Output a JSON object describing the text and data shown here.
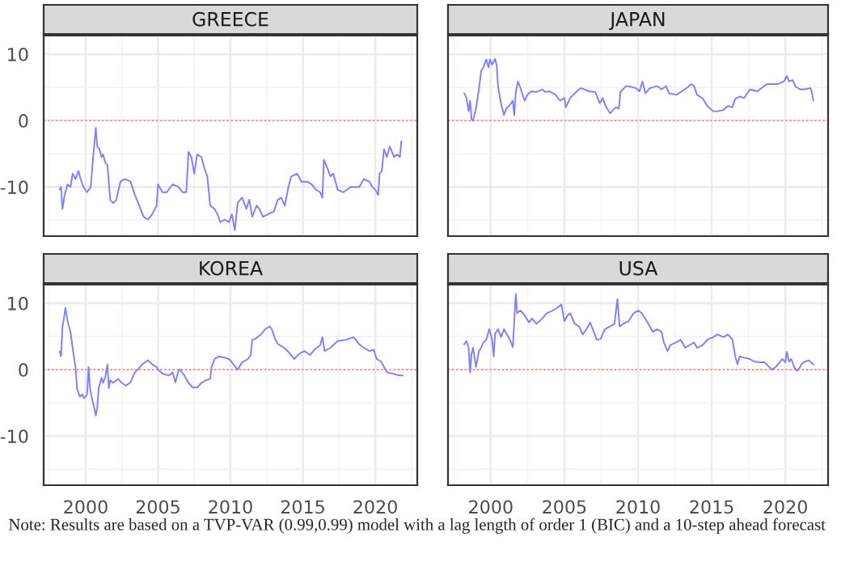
{
  "chart_data": [
    {
      "type": "line",
      "title": "GREECE",
      "xlim": [
        1997.1,
        2022.9
      ],
      "ylim": [
        -17.4,
        12.8
      ],
      "xticks": [
        2000,
        2005,
        2010,
        2015,
        2020
      ],
      "yticks": [
        -10,
        0,
        10
      ],
      "grid": true,
      "tick_labels": "y",
      "ref_lines": [
        {
          "axis": "y",
          "value": 0,
          "color": "#f08080",
          "line_style": "dotted"
        }
      ],
      "annotations": [
        "Note: Results are based on a TVP-VAR (0.99,0.99) model with a lag length of order 1 (BIC) and a 10-step ahead forecast"
      ],
      "x": [
        1998.2,
        1998.3,
        1998.4,
        1998.55,
        1998.75,
        1998.95,
        1999.1,
        1999.3,
        1999.5,
        1999.65,
        1999.85,
        2000.1,
        2000.35,
        2000.5,
        2000.7,
        2000.8,
        2000.95,
        2001.1,
        2001.2,
        2001.35,
        2001.5,
        2001.7,
        2001.9,
        2002.1,
        2002.4,
        2002.7,
        2003.1,
        2003.4,
        2003.7,
        2004.0,
        2004.3,
        2004.6,
        2004.9,
        2005.0,
        2005.3,
        2005.6,
        2006.0,
        2006.4,
        2006.7,
        2006.95,
        2007.1,
        2007.3,
        2007.5,
        2007.7,
        2008.0,
        2008.2,
        2008.4,
        2008.6,
        2008.9,
        2009.1,
        2009.3,
        2009.6,
        2009.9,
        2010.1,
        2010.3,
        2010.5,
        2010.8,
        2011.1,
        2011.3,
        2011.5,
        2011.8,
        2012.0,
        2012.25,
        2012.6,
        2013.0,
        2013.25,
        2013.5,
        2013.75,
        2014.0,
        2014.2,
        2014.6,
        2014.9,
        2015.3,
        2015.6,
        2015.9,
        2016.2,
        2016.35,
        2016.45,
        2016.7,
        2016.9,
        2017.1,
        2017.4,
        2017.8,
        2018.3,
        2018.9,
        2019.2,
        2019.6,
        2019.8,
        2020.0,
        2020.2,
        2020.3,
        2020.45,
        2020.6,
        2020.8,
        2021.0,
        2021.3,
        2021.5,
        2021.7,
        2021.8
      ],
      "series": [
        {
          "color": "#7f7fff",
          "values": [
            -10.4,
            -10,
            -13.3,
            -11.2,
            -9.6,
            -10,
            -8,
            -8.8,
            -7.6,
            -8.8,
            -10,
            -10.8,
            -10,
            -5.9,
            -1.1,
            -3.9,
            -4.3,
            -5.5,
            -5.1,
            -6.3,
            -6.7,
            -12,
            -12.4,
            -12,
            -9.2,
            -8.8,
            -9.2,
            -11.2,
            -12.8,
            -14.5,
            -14.9,
            -14.1,
            -12.8,
            -9.6,
            -10.8,
            -10.8,
            -9.6,
            -10,
            -10.8,
            -10.8,
            -4.7,
            -5.5,
            -8,
            -5.1,
            -5.5,
            -7.2,
            -8.4,
            -12.8,
            -13.3,
            -14.1,
            -15.3,
            -14.9,
            -15.3,
            -14.1,
            -16.5,
            -12.4,
            -11.6,
            -13.3,
            -11.9,
            -14.5,
            -12.8,
            -13.3,
            -14.5,
            -14.1,
            -13.7,
            -12,
            -11.6,
            -12.8,
            -10,
            -8.4,
            -8,
            -9.2,
            -9.2,
            -9.6,
            -10.4,
            -10.8,
            -11.6,
            -5.9,
            -7.2,
            -8.4,
            -8,
            -10.4,
            -10.8,
            -10,
            -10,
            -8.8,
            -9.2,
            -10,
            -10.4,
            -11.2,
            -8,
            -7.6,
            -4.3,
            -5.5,
            -3.9,
            -5.5,
            -5.1,
            -5.5,
            -3.1
          ]
        }
      ]
    },
    {
      "type": "line",
      "title": "JAPAN",
      "xlim": [
        1997.1,
        2022.9
      ],
      "ylim": [
        -17.4,
        12.8
      ],
      "xticks": [
        2000,
        2005,
        2010,
        2015,
        2020
      ],
      "yticks": [
        -10,
        0,
        10
      ],
      "grid": true,
      "tick_labels": false,
      "ref_lines": [
        {
          "axis": "y",
          "value": 0,
          "color": "#f08080",
          "line_style": "dotted"
        }
      ],
      "x": [
        1998.2,
        1998.35,
        1998.5,
        1998.6,
        1998.7,
        1998.8,
        1999.0,
        1999.2,
        1999.35,
        1999.5,
        1999.7,
        1999.85,
        1999.95,
        2000.1,
        2000.3,
        2000.4,
        2000.5,
        2000.7,
        2000.9,
        2001.05,
        2001.25,
        2001.5,
        2001.6,
        2001.7,
        2001.85,
        2002.05,
        2002.3,
        2002.5,
        2002.75,
        2003.1,
        2003.5,
        2003.7,
        2004.0,
        2004.4,
        2004.7,
        2005.0,
        2005.1,
        2005.4,
        2005.8,
        2006.1,
        2006.7,
        2007.1,
        2007.4,
        2007.6,
        2007.8,
        2008.1,
        2008.5,
        2008.7,
        2008.8,
        2009.2,
        2009.5,
        2009.85,
        2010.1,
        2010.3,
        2010.5,
        2010.8,
        2011.3,
        2011.6,
        2011.9,
        2012.1,
        2012.6,
        2012.9,
        2013.3,
        2013.6,
        2013.8,
        2014.0,
        2014.4,
        2014.7,
        2015.1,
        2015.4,
        2015.8,
        2016.1,
        2016.4,
        2016.6,
        2016.9,
        2017.2,
        2017.6,
        2018.1,
        2018.5,
        2018.75,
        2019.1,
        2019.5,
        2019.9,
        2020.1,
        2020.25,
        2020.5,
        2020.7,
        2021.0,
        2021.3,
        2021.7,
        2021.8,
        2021.9
      ],
      "series": [
        {
          "color": "#7f7fff",
          "values": [
            4.1,
            3.4,
            1.4,
            3,
            0.2,
            0,
            1.8,
            4.7,
            7.5,
            8,
            9.2,
            8,
            9.2,
            8.4,
            9.3,
            8.4,
            5.1,
            2.6,
            0.8,
            1.8,
            2.2,
            3,
            0.8,
            4.3,
            5.9,
            4.7,
            3,
            3.9,
            4.4,
            4.3,
            4.7,
            4.3,
            4.4,
            3.9,
            3,
            3.4,
            2,
            3.4,
            4.3,
            4.9,
            4.4,
            4.3,
            2.6,
            3.4,
            2.2,
            1.1,
            2,
            1.8,
            4.3,
            5.2,
            5.1,
            4.9,
            4.4,
            5.9,
            4.1,
            4.9,
            5.2,
            4.7,
            5.2,
            4.1,
            3.9,
            4.3,
            4.9,
            5.5,
            5.2,
            3.9,
            3.3,
            2.2,
            1.4,
            1.4,
            1.6,
            2.2,
            2,
            3.3,
            3.6,
            3.4,
            4.7,
            4.4,
            5.1,
            5.5,
            5.5,
            5.5,
            5.9,
            6.7,
            5.9,
            6.1,
            5.1,
            4.7,
            4.7,
            4.9,
            4.3,
            3
          ]
        }
      ]
    },
    {
      "type": "line",
      "title": "KOREA",
      "xlim": [
        1997.1,
        2022.9
      ],
      "ylim": [
        -17.4,
        12.8
      ],
      "xticks": [
        2000,
        2005,
        2010,
        2015,
        2020
      ],
      "yticks": [
        -10,
        0,
        10
      ],
      "grid": true,
      "ref_lines": [
        {
          "axis": "y",
          "value": 0,
          "color": "#f08080",
          "line_style": "dotted"
        }
      ],
      "x": [
        1998.2,
        1998.3,
        1998.4,
        1998.5,
        1998.6,
        1998.75,
        1998.95,
        1999.1,
        1999.3,
        1999.4,
        1999.6,
        1999.75,
        1999.9,
        2000.1,
        2000.2,
        2000.3,
        2000.45,
        2000.55,
        2000.7,
        2000.8,
        2000.9,
        2001.1,
        2001.2,
        2001.35,
        2001.5,
        2001.6,
        2001.7,
        2001.9,
        2002.25,
        2002.5,
        2002.8,
        2003.1,
        2003.4,
        2003.6,
        2003.9,
        2004.3,
        2004.6,
        2004.9,
        2005.0,
        2005.3,
        2005.6,
        2005.8,
        2006.0,
        2006.2,
        2006.4,
        2006.5,
        2006.8,
        2007.1,
        2007.4,
        2007.7,
        2008.0,
        2008.3,
        2008.6,
        2008.7,
        2008.9,
        2009.2,
        2009.6,
        2009.9,
        2010.1,
        2010.5,
        2010.8,
        2011.2,
        2011.4,
        2011.5,
        2011.7,
        2012.1,
        2012.4,
        2012.7,
        2012.85,
        2013.1,
        2013.3,
        2013.7,
        2014.0,
        2014.4,
        2014.75,
        2015.1,
        2015.5,
        2015.8,
        2016.2,
        2016.35,
        2016.5,
        2016.9,
        2017.4,
        2018.0,
        2018.5,
        2018.9,
        2019.2,
        2019.6,
        2019.9,
        2020.1,
        2020.4,
        2020.6,
        2020.8,
        2021.2,
        2021.5,
        2021.9
      ],
      "series": [
        {
          "color": "#7f7fff",
          "values": [
            2.8,
            2,
            6.5,
            7.7,
            9.3,
            7.3,
            5.7,
            3.3,
            0.4,
            -2.8,
            -4.1,
            -3.7,
            -4.3,
            -3.7,
            0.4,
            -2.8,
            -4.5,
            -5.3,
            -6.9,
            -5.7,
            -2.8,
            -1.2,
            -2,
            -1.2,
            0.8,
            -2.8,
            -1.6,
            -2,
            -1.4,
            -2,
            -2.4,
            -1.9,
            -0.4,
            0,
            0.8,
            1.4,
            0.8,
            0.4,
            0,
            -0.6,
            -0.8,
            -0.8,
            -0.4,
            -1.9,
            -0.2,
            0,
            -0.8,
            -2,
            -2.7,
            -2.7,
            -2,
            -1.6,
            -1.4,
            0.4,
            1.6,
            2,
            1.8,
            1.6,
            1.1,
            0,
            1.1,
            1.6,
            2.2,
            4.5,
            4.6,
            5.3,
            6.1,
            6.5,
            6.1,
            4.5,
            3.8,
            3.3,
            2.7,
            1.6,
            2.4,
            2.8,
            2.2,
            3,
            3.7,
            4.9,
            2.8,
            3.3,
            4.3,
            4.5,
            4.9,
            3.8,
            3.3,
            2.8,
            3,
            1.6,
            1.2,
            0.4,
            -0.4,
            -0.6,
            -0.8,
            -0.9
          ]
        }
      ]
    },
    {
      "type": "line",
      "title": "USA",
      "xlim": [
        1997.1,
        2022.9
      ],
      "ylim": [
        -17.4,
        12.8
      ],
      "xticks": [
        2000,
        2005,
        2010,
        2015,
        2020
      ],
      "yticks": [
        -10,
        0,
        10
      ],
      "grid": true,
      "tick_labels": "x",
      "ref_lines": [
        {
          "axis": "y",
          "value": 0,
          "color": "#f08080",
          "line_style": "dotted"
        }
      ],
      "x": [
        1998.2,
        1998.35,
        1998.5,
        1998.6,
        1998.7,
        1998.8,
        1999.0,
        1999.2,
        1999.35,
        1999.5,
        1999.7,
        1999.9,
        2000.1,
        2000.2,
        2000.3,
        2000.5,
        2000.7,
        2000.9,
        2001.1,
        2001.3,
        2001.5,
        2001.7,
        2001.8,
        2002.0,
        2002.2,
        2002.6,
        2002.8,
        2003.1,
        2003.5,
        2003.8,
        2004.2,
        2004.5,
        2004.8,
        2005.0,
        2005.2,
        2005.4,
        2005.7,
        2006.0,
        2006.25,
        2006.5,
        2006.75,
        2007.0,
        2007.2,
        2007.45,
        2007.75,
        2008.1,
        2008.4,
        2008.6,
        2008.75,
        2009.0,
        2009.35,
        2009.7,
        2010.0,
        2010.25,
        2010.6,
        2011.0,
        2011.3,
        2011.6,
        2011.75,
        2012.0,
        2012.2,
        2012.6,
        2012.9,
        2013.2,
        2013.5,
        2013.8,
        2014.0,
        2014.4,
        2014.7,
        2015.1,
        2015.4,
        2015.8,
        2016.1,
        2016.4,
        2016.6,
        2016.75,
        2016.9,
        2017.2,
        2017.6,
        2017.9,
        2018.3,
        2018.6,
        2018.9,
        2019.1,
        2019.35,
        2019.6,
        2019.8,
        2020.0,
        2020.1,
        2020.25,
        2020.4,
        2020.6,
        2020.8,
        2021.0,
        2021.1,
        2021.3,
        2021.6,
        2021.9
      ],
      "series": [
        {
          "color": "#7f7fff",
          "values": [
            3.8,
            4.3,
            3.3,
            -0.4,
            2.4,
            3.3,
            0.4,
            2.8,
            3.3,
            4.1,
            4.5,
            6.1,
            4.5,
            2,
            5.4,
            6.1,
            4.9,
            6.1,
            5.3,
            4.5,
            3.4,
            11.4,
            8.5,
            8.9,
            8.5,
            7.1,
            7.7,
            6.9,
            7.7,
            8.5,
            8.9,
            9.3,
            9.8,
            7.3,
            8.1,
            8.5,
            6.9,
            6.5,
            5.3,
            6.1,
            7.1,
            5.7,
            4.5,
            4.6,
            6.1,
            6.5,
            6.9,
            10.6,
            6.5,
            6.9,
            7.3,
            8.5,
            8.9,
            8.5,
            7.3,
            5.7,
            6.1,
            5.7,
            4.1,
            2.8,
            3.7,
            4.1,
            4.5,
            3.3,
            3.7,
            4.1,
            3.3,
            3.7,
            4.5,
            4.9,
            5.3,
            4.9,
            5.3,
            4.6,
            2,
            0.8,
            2,
            1.8,
            1.6,
            1.2,
            1.1,
            1.1,
            0.4,
            0,
            0.4,
            1.1,
            1.6,
            1.1,
            2.7,
            1.2,
            1.6,
            0.4,
            -0.2,
            0.4,
            0.8,
            1.2,
            1.4,
            0.8
          ]
        }
      ]
    }
  ]
}
